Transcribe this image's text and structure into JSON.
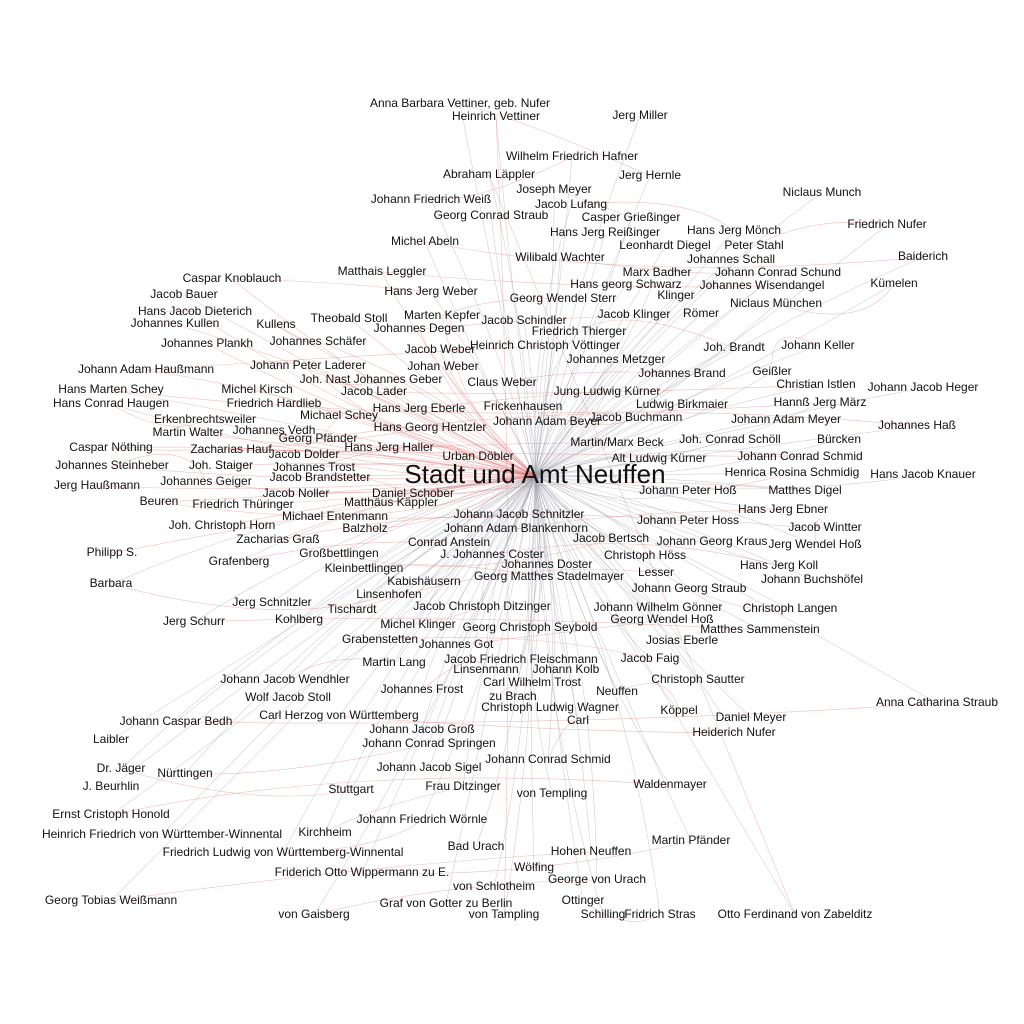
{
  "graph": {
    "hub": "Stadt und Amt Neuffen",
    "edge_colors": {
      "red": "#e07070",
      "gray": "#9a9aa6"
    },
    "label_color": "#111111",
    "background": "#ffffff",
    "nodes": [
      "Anna Barbara Vettiner, geb. Nufer",
      "Heinrich Vettiner",
      "Jerg Miller",
      "Wilhelm Friedrich Hafner",
      "Abraham Läppler",
      "Jerg Hernle",
      "Joseph Meyer",
      "Niclaus Munch",
      "Johann Friedrich Weiß",
      "Jacob Lufang",
      "Georg Conrad Straub",
      "Casper Grießinger",
      "Friedrich Nufer",
      "Hans Jerg Reißinger",
      "Hans Jerg Mönch",
      "Michel Abeln",
      "Leonhardt Diegel",
      "Peter Stahl",
      "Wilibald Wachter",
      "Johannes Schall",
      "Baiderich",
      "Matthais Leggler",
      "Marx Badher",
      "Johann Conrad Schund",
      "Caspar Knoblauch",
      "Hans georg Schwarz",
      "Johannes Wisendangel",
      "Kümelen",
      "Jacob Bauer",
      "Hans Jerg Weber",
      "Georg Wendel Sterr",
      "Klinger",
      "Niclaus München",
      "Hans Jacob Dieterich",
      "Theobald Stoll",
      "Marten Kepfer",
      "Jacob Klinger",
      "Römer",
      "Johannes Kullen",
      "Kullens",
      "Jacob Schindler",
      "Johannes Degen",
      "Friedrich Thierger",
      "Johannes Plankh",
      "Johannes Schäfer",
      "Heinrich Christoph Vöttinger",
      "Jacob Weber",
      "Joh. Brandt",
      "Johann Keller",
      "Johannes Metzger",
      "Johann Adam Haußmann",
      "Johann Peter Laderer",
      "Johan Weber",
      "Geißler",
      "Johannes Brand",
      "Joh. Nast",
      "Johannes Geber",
      "Christian Istlen",
      "Johann Jacob Heger",
      "Claus Weber",
      "Hans Marten Schey",
      "Michel Kirsch",
      "Jacob Lader",
      "Jung Ludwig Kürner",
      "Ludwig Birkmaier",
      "Hannß Jerg März",
      "Hans Conrad Haugen",
      "Friedrich Hardlieb",
      "Hans Jerg Eberle",
      "Frickenhausen",
      "Johann Adam Meyer",
      "Erkenbrechtsweiler",
      "Michael Schey",
      "Johann Adam Beyer",
      "Jacob Buchmann",
      "Johannes Haß",
      "Martin Walter",
      "Johannes Vedh",
      "Hans Georg Hentzler",
      "Bürcken",
      "Georg Pfänder",
      "Martin/Marx Beck",
      "Joh. Conrad Schöll",
      "Caspar Nöthing",
      "Zacharias Hauf",
      "Hans Jerg Haller",
      "Jacob Dolder",
      "Urban Döbler",
      "Alt Ludwig Kürner",
      "Johann Conrad Schmid",
      "Johannes Steinheber",
      "Joh. Staiger",
      "Johannes Trost",
      "Henrica Rosina Schmidig",
      "Hans Jacob Knauer",
      "Johannes Geiger",
      "Jacob Brandstetter",
      "Jerg Haußmann",
      "Johann Peter Hoß",
      "Matthes Digel",
      "Jacob Noller",
      "Daniel Schober",
      "Beuren",
      "Friedrich Thüringer",
      "Matthäus Käppler",
      "Hans Jerg Ebner",
      "Michael Entenmann",
      "Johann Jacob Schnitzler",
      "Johann Peter Hoss",
      "Balzholz",
      "Johann Adam Blankenhorn",
      "Jacob Wintter",
      "Joh. Christoph Horn",
      "Zacharias Graß",
      "Jacob Bertsch",
      "Johann Georg Kraus",
      "Jerg Wendel Hoß",
      "Conrad Anstein",
      "Philipp S.",
      "Großbettlingen",
      "J. Johannes Coster",
      "Christoph Höss",
      "Grafenberg",
      "Kleinbettlingen",
      "Johannes Doster",
      "Hans Jerg Koll",
      "Barbara",
      "Kabishäusern",
      "Georg Matthes Stadelmayer",
      "Lesser",
      "Johann Buchshöfel",
      "Linsenhofen",
      "Johann Georg Straub",
      "Jerg Schnitzler",
      "Tischardt",
      "Jacob Christoph Ditzinger",
      "Johann Wilhelm Gönner",
      "Christoph Langen",
      "Jerg Schurr",
      "Kohlberg",
      "Michel Klinger",
      "Georg Wendel Hoß",
      "Georg Christoph Seybold",
      "Matthes Sammenstein",
      "Grabenstetten",
      "Josias Eberle",
      "Johannes Got",
      "Martin Lang",
      "Jacob Friedrich Fleischmann",
      "Jacob Faig",
      "Linsenmann",
      "Johann Kolb",
      "Johann Jacob Wendhler",
      "Carl Wilhelm Trost",
      "Christoph Sautter",
      "Johannes Frost",
      "Neuffen",
      "Wolf Jacob Stoll",
      "zu Brach",
      "Anna Catharina Straub",
      "Christoph Ludwig Wagner",
      "Köppel",
      "Carl Herzog von Württemberg",
      "Daniel Meyer",
      "Johann Caspar Bedh",
      "Carl",
      "Johann Jacob Groß",
      "Heiderich Nufer",
      "Johann Conrad Springen",
      "Laibler",
      "Johann Conrad Schmid",
      "Dr. Jäger",
      "Johann Jacob Sigel",
      "Nürttingen",
      "Waldenmayer",
      "J. Beurhlin",
      "Stuttgart",
      "Frau Ditzinger",
      "von Templing",
      "Ernst Cristoph Honold",
      "Johann Friedrich Wörnle",
      "Heinrich Friedrich von Württember-Winnental",
      "Kirchheim",
      "Martin Pfänder",
      "Bad Urach",
      "Friedrich Ludwig von Württemberg-Winnental",
      "Hohen Neuffen",
      "Wölfing",
      "Friderich Otto Wippermann zu E.",
      "George von Urach",
      "von Schlotheim",
      "Georg Tobias Weißmann",
      "Ottinger",
      "Graf von Gotter zu Berlin",
      "von Gaisberg",
      "von Tampling",
      "Schilling",
      "Fridrich Stras",
      "Otto Ferdinand von Zabelditz"
    ]
  }
}
